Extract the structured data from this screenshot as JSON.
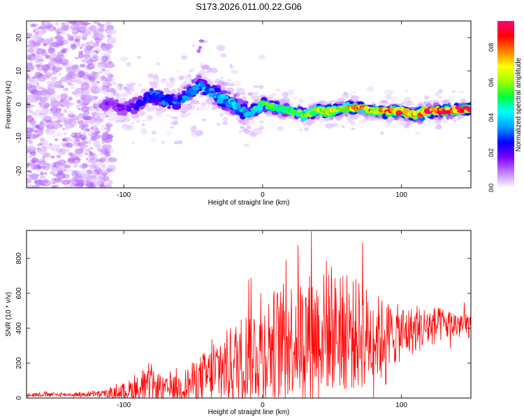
{
  "title": "S173.2026.011.00.22.G06",
  "chart_data": [
    {
      "type": "heatmap",
      "name": "spectrogram",
      "xlabel": "Height of straight line (km)",
      "ylabel": "Frequency (Hz)",
      "xlim": [
        -170,
        150
      ],
      "ylim": [
        -25,
        25
      ],
      "x_ticks": [
        -100,
        0,
        100
      ],
      "y_ticks": [
        -20,
        -10,
        0,
        10,
        20
      ],
      "ridge": {
        "x": [
          -115,
          -100,
          -90,
          -80,
          -70,
          -60,
          -50,
          -45,
          -40,
          -30,
          -20,
          -10,
          0,
          10,
          20,
          30,
          40,
          50,
          60,
          70,
          80,
          90,
          100,
          110,
          120,
          130,
          140,
          148
        ],
        "y": [
          0,
          -1,
          0,
          3,
          1,
          1,
          4,
          6,
          4,
          2,
          0,
          -3,
          0,
          -1,
          -2,
          -3,
          -2,
          -2,
          -1,
          -1,
          -2,
          -2,
          -2,
          -3,
          -2,
          -2,
          -1.5,
          -1.5
        ],
        "amplitude": [
          0.15,
          0.18,
          0.22,
          0.3,
          0.3,
          0.32,
          0.35,
          0.35,
          0.35,
          0.38,
          0.42,
          0.45,
          0.55,
          0.5,
          0.55,
          0.6,
          0.65,
          0.75,
          0.7,
          0.8,
          0.75,
          0.8,
          0.85,
          0.8,
          0.9,
          0.88,
          0.92,
          0.9
        ]
      }
    },
    {
      "type": "colorbar",
      "label": "Normalized spectral amplitude",
      "range": [
        0,
        0.95
      ],
      "ticks": [
        "0.0",
        "0.2",
        "0.4",
        "0.6",
        "0.8"
      ],
      "tick_values": [
        0,
        0.2,
        0.4,
        0.6,
        0.8
      ],
      "colors": [
        "#ffffff",
        "#c080ff",
        "#8000ff",
        "#0000ff",
        "#00a0ff",
        "#00ffff",
        "#00ff40",
        "#a0ff00",
        "#ffff00",
        "#ff8000",
        "#ff0000",
        "#ff0080"
      ]
    },
    {
      "type": "line",
      "name": "snr",
      "xlabel": "Height of straight line (km)",
      "ylabel": "SNR (10 * v/v)",
      "xlim": [
        -170,
        150
      ],
      "ylim": [
        0,
        960
      ],
      "x_ticks": [
        -100,
        0,
        100
      ],
      "y_ticks": [
        0,
        200,
        400,
        600,
        800
      ],
      "color": "#ff0000",
      "envelope": {
        "x": [
          -170,
          -130,
          -110,
          -100,
          -90,
          -80,
          -70,
          -60,
          -50,
          -40,
          -30,
          -20,
          -10,
          0,
          10,
          20,
          30,
          40,
          50,
          60,
          70,
          80,
          90,
          100,
          110,
          120,
          130,
          150
        ],
        "base": [
          20,
          20,
          25,
          40,
          50,
          60,
          50,
          60,
          90,
          120,
          160,
          200,
          250,
          280,
          320,
          350,
          360,
          380,
          380,
          370,
          360,
          350,
          360,
          370,
          390,
          410,
          420,
          420
        ],
        "amp": [
          15,
          15,
          30,
          60,
          100,
          130,
          80,
          100,
          150,
          200,
          250,
          300,
          350,
          380,
          400,
          420,
          450,
          450,
          430,
          420,
          400,
          330,
          250,
          200,
          170,
          150,
          120,
          100
        ]
      },
      "peaks": [
        {
          "x": 35,
          "y": 955
        },
        {
          "x": 72,
          "y": 890
        },
        {
          "x": 17,
          "y": 790
        },
        {
          "x": 46,
          "y": 785
        },
        {
          "x": -10,
          "y": 680
        },
        {
          "x": -80,
          "y": 195
        }
      ]
    }
  ]
}
